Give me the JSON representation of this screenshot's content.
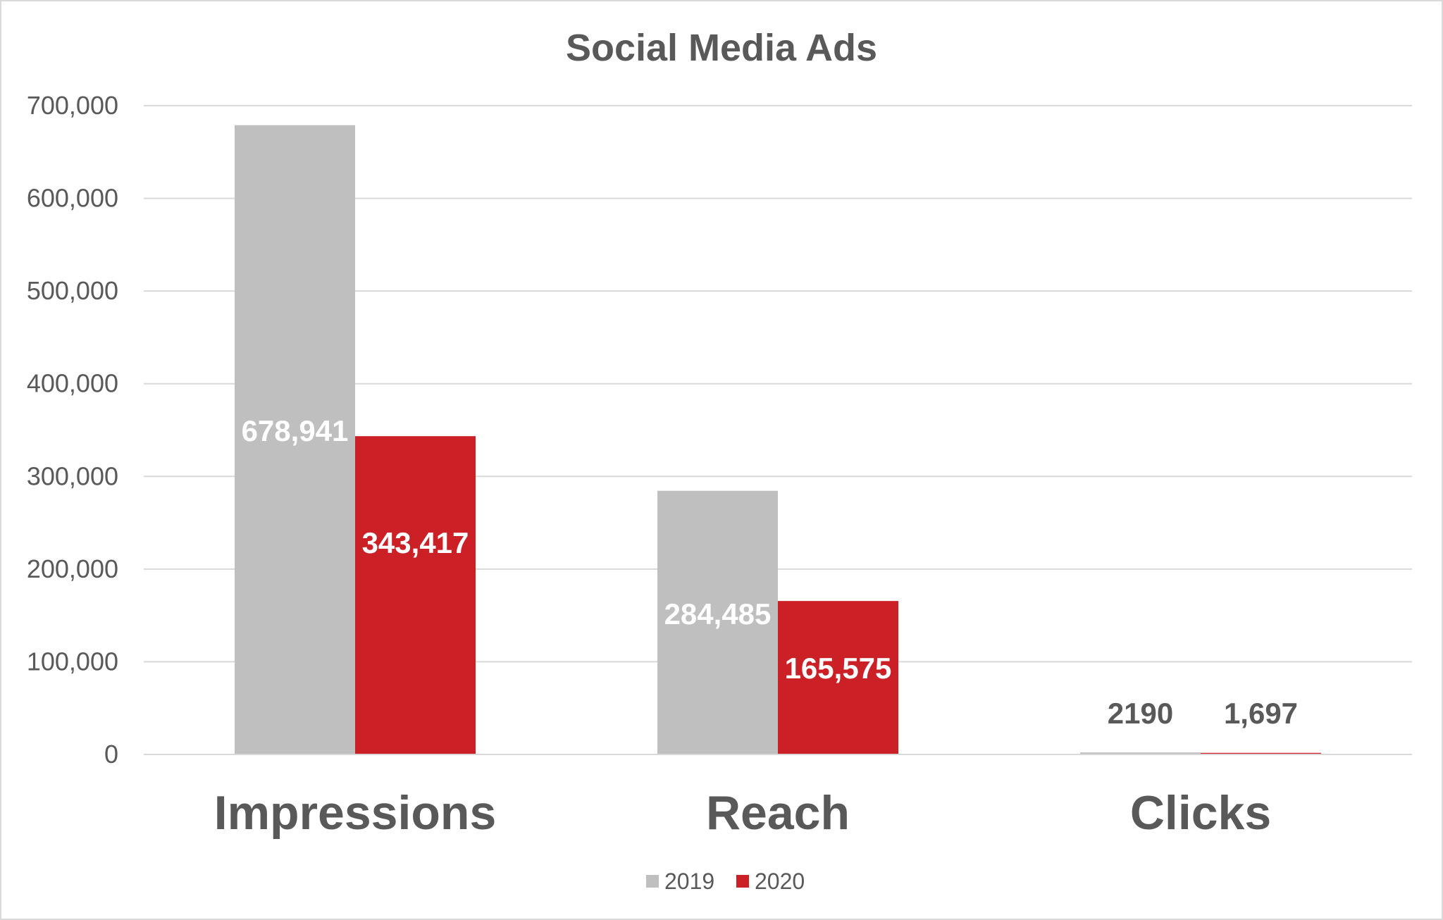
{
  "chart_data": {
    "type": "bar",
    "title": "Social Media Ads",
    "categories": [
      "Impressions",
      "Reach",
      "Clicks"
    ],
    "series": [
      {
        "name": "2019",
        "color": "#bfbfbf",
        "values": [
          678941,
          284485,
          2190
        ],
        "labels": [
          "678,941",
          "284,485",
          "2190"
        ],
        "label_colors": [
          "#ffffff",
          "#ffffff",
          "#595959"
        ]
      },
      {
        "name": "2020",
        "color": "#cc2027",
        "values": [
          343417,
          165575,
          1697
        ],
        "labels": [
          "343,417",
          "165,575",
          "1,697"
        ],
        "label_colors": [
          "#ffffff",
          "#ffffff",
          "#595959"
        ]
      }
    ],
    "ylim": [
      0,
      700000
    ],
    "yticks": [
      0,
      100000,
      200000,
      300000,
      400000,
      500000,
      600000,
      700000
    ],
    "ytick_labels": [
      "0",
      "100,000",
      "200,000",
      "300,000",
      "400,000",
      "500,000",
      "600,000",
      "700,000"
    ],
    "xlabel": "",
    "ylabel": "",
    "grid": true,
    "gridline_color": "#d9d9d9",
    "legend_position": "bottom"
  }
}
